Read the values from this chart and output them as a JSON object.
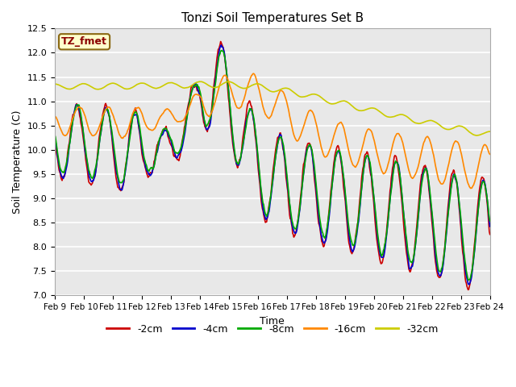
{
  "title": "Tonzi Soil Temperatures Set B",
  "xlabel": "Time",
  "ylabel": "Soil Temperature (C)",
  "ylim": [
    7.0,
    12.5
  ],
  "yticks": [
    7.0,
    7.5,
    8.0,
    8.5,
    9.0,
    9.5,
    10.0,
    10.5,
    11.0,
    11.5,
    12.0,
    12.5
  ],
  "annotation": "TZ_fmet",
  "annotation_color": "#8B0000",
  "annotation_bg": "#FFFFCC",
  "annotation_border": "#8B6914",
  "x_tick_labels": [
    "Feb 9",
    "Feb 10",
    "Feb 11",
    "Feb 12",
    "Feb 13",
    "Feb 14",
    "Feb 15",
    "Feb 16",
    "Feb 17",
    "Feb 18",
    "Feb 19",
    "Feb 20",
    "Feb 21",
    "Feb 22",
    "Feb 23",
    "Feb 24"
  ],
  "series_labels": [
    "-2cm",
    "-4cm",
    "-8cm",
    "-16cm",
    "-32cm"
  ],
  "series_colors": [
    "#CC0000",
    "#0000CC",
    "#00AA00",
    "#FF8800",
    "#CCCC00"
  ],
  "line_width": 1.2,
  "bg_color": "#E8E8E8",
  "grid_color": "#FFFFFF",
  "fig_bg": "#FFFFFF"
}
